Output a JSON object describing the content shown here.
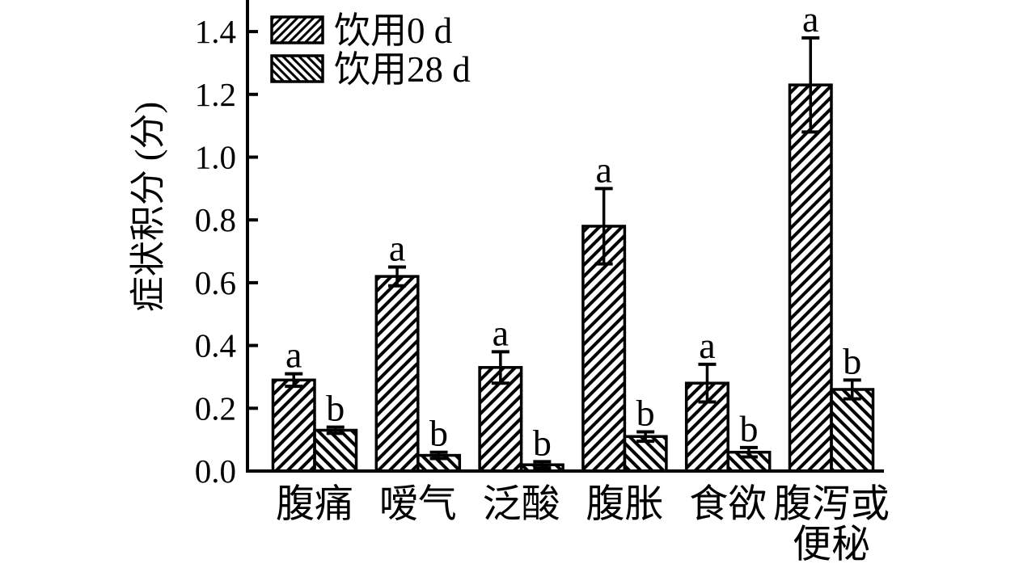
{
  "chart_data": {
    "type": "bar",
    "title": "",
    "ylabel": "症状积分 (分)",
    "xlabel": "",
    "ylim": [
      0,
      1.45
    ],
    "ytick_labels": [
      "0.0",
      "0.2",
      "0.4",
      "0.6",
      "0.8",
      "1.0",
      "1.2",
      "1.4"
    ],
    "grid": false,
    "legend": {
      "position": "upper-left-inside",
      "entries": [
        "饮用0 d",
        "饮用28 d"
      ]
    },
    "categories": [
      "腹痛",
      "嗳气",
      "泛酸",
      "腹胀",
      "食欲",
      "腹泻或便秘"
    ],
    "category_display_lines": [
      [
        "腹痛"
      ],
      [
        "嗳气"
      ],
      [
        "泛酸"
      ],
      [
        "腹胀"
      ],
      [
        "食欲"
      ],
      [
        "腹泻或",
        "便秘"
      ]
    ],
    "series": [
      {
        "name": "饮用0 d",
        "hatch": "forward-diagonal",
        "values": [
          0.29,
          0.62,
          0.33,
          0.78,
          0.28,
          1.23
        ],
        "errors": [
          0.02,
          0.03,
          0.05,
          0.12,
          0.06,
          0.15
        ],
        "sig_letters": [
          "a",
          "a",
          "a",
          "a",
          "a",
          "a"
        ]
      },
      {
        "name": "饮用28 d",
        "hatch": "backward-diagonal",
        "values": [
          0.13,
          0.05,
          0.02,
          0.11,
          0.06,
          0.26
        ],
        "errors": [
          0.01,
          0.01,
          0.01,
          0.015,
          0.015,
          0.03
        ],
        "sig_letters": [
          "b",
          "b",
          "b",
          "b",
          "b",
          "b"
        ]
      }
    ],
    "colors": {
      "ink": "#000000",
      "background": "#ffffff",
      "bar_fill": "#ffffff"
    }
  }
}
